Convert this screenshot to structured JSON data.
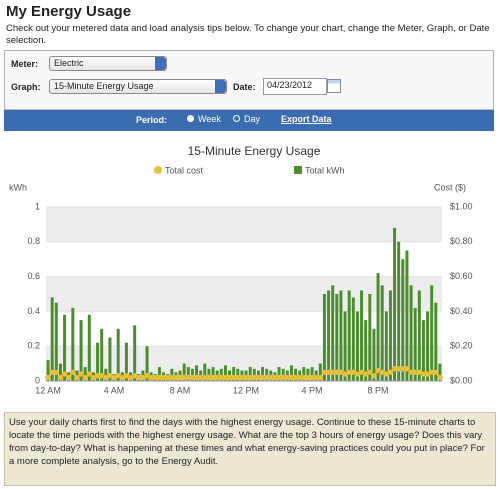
{
  "header": {
    "title": "My Energy Usage",
    "intro": "Check out your metered data and load analysis tips below. To change your chart, change the Meter, Graph, or Date selection."
  },
  "controls": {
    "meter_label": "Meter:",
    "meter_value": "Electric",
    "graph_label": "Graph:",
    "graph_value": "15-Minute Energy Usage",
    "date_label": "Date:",
    "date_value": "04/23/2012"
  },
  "period": {
    "label": "Period:",
    "week": "Week",
    "day": "Day",
    "export": "Export Data"
  },
  "chart_data": {
    "type": "bar",
    "title": "15-Minute Energy Usage",
    "ylabel": "kWh",
    "y2label": "Cost ($)",
    "categories": [
      "12 AM",
      null,
      null,
      null,
      null,
      null,
      null,
      null,
      null,
      null,
      null,
      null,
      null,
      null,
      null,
      null,
      "4 AM",
      null,
      null,
      null,
      null,
      null,
      null,
      null,
      null,
      null,
      null,
      null,
      null,
      null,
      null,
      null,
      "8 AM",
      null,
      null,
      null,
      null,
      null,
      null,
      null,
      null,
      null,
      null,
      null,
      null,
      null,
      null,
      null,
      "12 PM",
      null,
      null,
      null,
      null,
      null,
      null,
      null,
      null,
      null,
      null,
      null,
      null,
      null,
      null,
      null,
      "4 PM",
      null,
      null,
      null,
      null,
      null,
      null,
      null,
      null,
      null,
      null,
      null,
      null,
      null,
      null,
      null,
      "8 PM",
      null,
      null,
      null,
      null,
      null,
      null,
      null,
      null,
      null,
      null,
      null,
      null,
      null,
      null,
      null
    ],
    "series": [
      {
        "name": "Total cost",
        "type": "line",
        "color": "#e6c43c",
        "axis": "y2",
        "values": [
          0.02,
          0.05,
          0.05,
          0.02,
          0.04,
          0.02,
          0.05,
          0.02,
          0.04,
          0.02,
          0.04,
          0.02,
          0.03,
          0.03,
          0.02,
          0.03,
          0.02,
          0.03,
          0.02,
          0.03,
          0.02,
          0.03,
          0.02,
          0.02,
          0.03,
          0.02,
          0.02,
          0.02,
          0.02,
          0.02,
          0.02,
          0.02,
          0.02,
          0.02,
          0.02,
          0.02,
          0.02,
          0.02,
          0.02,
          0.02,
          0.02,
          0.02,
          0.02,
          0.02,
          0.02,
          0.02,
          0.02,
          0.02,
          0.02,
          0.02,
          0.02,
          0.02,
          0.02,
          0.02,
          0.02,
          0.02,
          0.02,
          0.02,
          0.02,
          0.02,
          0.02,
          0.02,
          0.02,
          0.02,
          0.02,
          0.02,
          0.02,
          0.05,
          0.05,
          0.05,
          0.05,
          0.05,
          0.04,
          0.05,
          0.05,
          0.04,
          0.05,
          0.04,
          0.05,
          0.03,
          0.06,
          0.05,
          0.04,
          0.05,
          0.07,
          0.07,
          0.07,
          0.07,
          0.05,
          0.05,
          0.05,
          0.04,
          0.04,
          0.05,
          0.05,
          0.02
        ]
      },
      {
        "name": "Total kWh",
        "type": "bar",
        "color": "#4a8c2e",
        "values": [
          0.12,
          0.48,
          0.45,
          0.1,
          0.38,
          0.05,
          0.42,
          0.06,
          0.35,
          0.08,
          0.38,
          0.05,
          0.22,
          0.3,
          0.07,
          0.25,
          0.04,
          0.3,
          0.05,
          0.22,
          0.05,
          0.32,
          0.04,
          0.06,
          0.2,
          0.05,
          0.04,
          0.08,
          0.05,
          0.04,
          0.07,
          0.05,
          0.06,
          0.1,
          0.08,
          0.07,
          0.09,
          0.06,
          0.1,
          0.07,
          0.08,
          0.06,
          0.07,
          0.09,
          0.06,
          0.08,
          0.07,
          0.06,
          0.06,
          0.08,
          0.07,
          0.06,
          0.08,
          0.07,
          0.06,
          0.05,
          0.08,
          0.07,
          0.06,
          0.09,
          0.07,
          0.06,
          0.08,
          0.07,
          0.08,
          0.06,
          0.1,
          0.5,
          0.52,
          0.55,
          0.5,
          0.52,
          0.4,
          0.52,
          0.48,
          0.4,
          0.52,
          0.35,
          0.5,
          0.3,
          0.62,
          0.55,
          0.4,
          0.52,
          0.88,
          0.8,
          0.7,
          0.75,
          0.55,
          0.42,
          0.52,
          0.35,
          0.4,
          0.55,
          0.45,
          0.1
        ]
      }
    ],
    "ylim": [
      0,
      1
    ],
    "yticks": [
      0,
      0.2,
      0.4,
      0.6,
      0.8,
      1
    ],
    "y2lim": [
      0,
      1
    ],
    "y2ticks": [
      {
        "value": 0,
        "label": "$0.00"
      },
      {
        "value": 0.2,
        "label": "$0.20"
      },
      {
        "value": 0.4,
        "label": "$0.40"
      },
      {
        "value": 0.6,
        "label": "$0.60"
      },
      {
        "value": 0.8,
        "label": "$0.80"
      },
      {
        "value": 1,
        "label": "$1.00"
      }
    ],
    "grid": true
  },
  "footer": {
    "text": "Use your daily charts first to find the days with the highest energy usage. Continue to these 15-minute charts to locate the time periods with the highest energy usage. What are the top 3 hours of energy usage? Does this vary from day-to-day? What is happening at these times and what energy-saving practices could you put in place? For a more complete analysis, go to the Energy Audit."
  }
}
